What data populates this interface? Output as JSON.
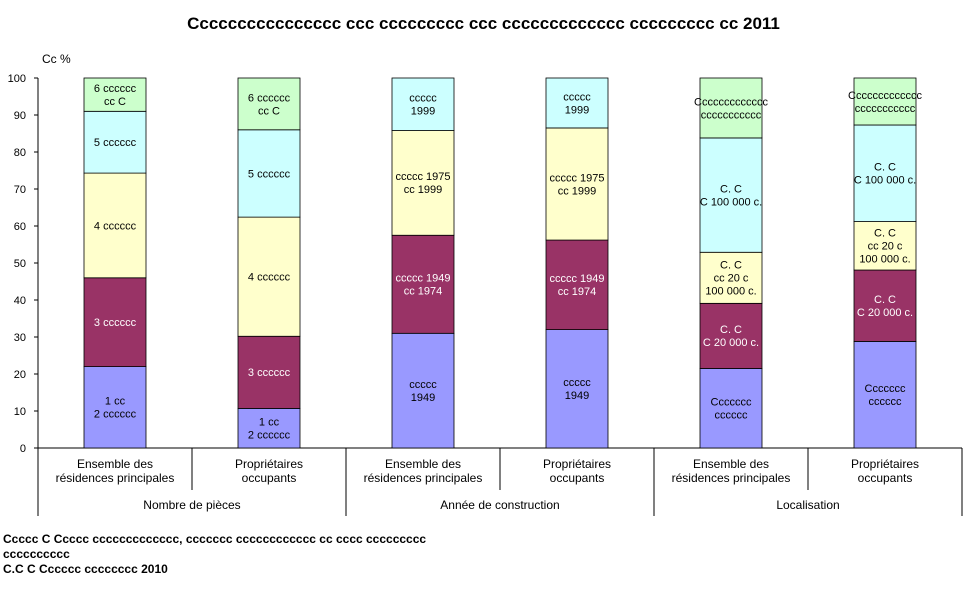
{
  "chart_data": {
    "type": "bar",
    "stacked": true,
    "title": "Cccccccccccccccc ccc ccccccccc ccc ccccccccccccc ccccccccc cc 2011",
    "ylabel": "Cc %",
    "ylim": [
      0,
      100
    ],
    "yticks": [
      "0",
      "10",
      "20",
      "30",
      "40",
      "50",
      "60",
      "70",
      "80",
      "90",
      "100"
    ],
    "grid": false,
    "legend": "none",
    "categories": [
      "Ensemble des\nrésidences principales",
      "Propriétaires\noccupants",
      "Ensemble des\nrésidences principales",
      "Propriétaires\noccupants",
      "Ensemble des\nrésidences principales",
      "Propriétaires\noccupants"
    ],
    "groups": [
      {
        "label": "Nombre de pièces",
        "categories": [
          0,
          1
        ]
      },
      {
        "label": "Année de construction",
        "categories": [
          2,
          3
        ]
      },
      {
        "label": "Localisation",
        "categories": [
          4,
          5
        ]
      }
    ],
    "bars": [
      {
        "segments": [
          {
            "value": 22.0,
            "color": "#9999ff",
            "label": "1 cc\n2 cccccc"
          },
          {
            "value": 24.0,
            "color": "#993366",
            "label": "3 cccccc"
          },
          {
            "value": 28.3,
            "color": "#ffffcc",
            "label": "4 cccccc"
          },
          {
            "value": 16.7,
            "color": "#ccffff",
            "label": "5 cccccc"
          },
          {
            "value": 9.0,
            "color": "#ccffcc",
            "label": "6 cccccc\ncc C"
          }
        ]
      },
      {
        "segments": [
          {
            "value": 10.7,
            "color": "#9999ff",
            "label": "1 cc\n2 cccccc"
          },
          {
            "value": 19.5,
            "color": "#993366",
            "label": "3 cccccc"
          },
          {
            "value": 32.2,
            "color": "#ffffcc",
            "label": "4 cccccc"
          },
          {
            "value": 23.6,
            "color": "#ccffff",
            "label": "5 cccccc"
          },
          {
            "value": 14.0,
            "color": "#ccffcc",
            "label": "6 cccccc\ncc C"
          }
        ]
      },
      {
        "segments": [
          {
            "value": 31.0,
            "color": "#9999ff",
            "label": "ccccc\n1949"
          },
          {
            "value": 26.5,
            "color": "#993366",
            "label": "ccccc 1949\ncc 1974"
          },
          {
            "value": 28.3,
            "color": "#ffffcc",
            "label": "ccccc 1975\ncc 1999"
          },
          {
            "value": 14.2,
            "color": "#ccffff",
            "label": "ccccc\n1999"
          }
        ]
      },
      {
        "segments": [
          {
            "value": 32.0,
            "color": "#9999ff",
            "label": "ccccc\n1949"
          },
          {
            "value": 24.2,
            "color": "#993366",
            "label": "ccccc 1949\ncc 1974"
          },
          {
            "value": 30.3,
            "color": "#ffffcc",
            "label": "ccccc 1975\ncc 1999"
          },
          {
            "value": 13.5,
            "color": "#ccffff",
            "label": "ccccc\n1999"
          }
        ]
      },
      {
        "segments": [
          {
            "value": 21.5,
            "color": "#9999ff",
            "label": "Ccccccc\ncccccc"
          },
          {
            "value": 17.6,
            "color": "#993366",
            "label": "C. C\nC 20 000 c."
          },
          {
            "value": 13.8,
            "color": "#ffffcc",
            "label": "C. C\ncc 20 c\n100 000 c."
          },
          {
            "value": 30.9,
            "color": "#ccffff",
            "label": "C. C\nC 100 000 c."
          },
          {
            "value": 16.2,
            "color": "#ccffcc",
            "label": "Ccccccccccccc\nccccccccccc"
          }
        ]
      },
      {
        "segments": [
          {
            "value": 28.8,
            "color": "#9999ff",
            "label": "Ccccccc\ncccccc"
          },
          {
            "value": 19.3,
            "color": "#993366",
            "label": "C. C\nC 20 000 c."
          },
          {
            "value": 13.1,
            "color": "#ffffcc",
            "label": "C. C\ncc 20 c\n100 000 c."
          },
          {
            "value": 26.1,
            "color": "#ccffff",
            "label": "C. C\nC 100 000 c."
          },
          {
            "value": 12.7,
            "color": "#ccffcc",
            "label": "Ccccccccccccc\nccccccccccc"
          }
        ]
      }
    ]
  },
  "footnote": {
    "line1": "Ccccc C Ccccc ccccccccccccc, ccccccc cccccccccccc cc cccc ccccccccc",
    "line2": "cccccccccc",
    "line3": "C.C C Cccccc cccccccc 2010"
  }
}
